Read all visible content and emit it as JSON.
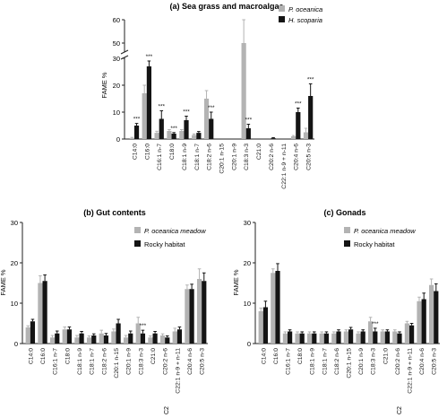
{
  "figure": {
    "colors": {
      "light": "#b3b3b3",
      "dark": "#141414",
      "axis": "#222222"
    },
    "panels": [
      {
        "id": "a",
        "title": "(a) Sea grass and macroalgae",
        "ylabel": "FAME %",
        "legend": [
          "P. oceanica",
          "H. scoparia"
        ],
        "axis_break": true,
        "yticks_lower": [
          0,
          10,
          20,
          30
        ],
        "yticks_upper": [
          50,
          60
        ]
      },
      {
        "id": "b",
        "title": "(b) Gut contents",
        "ylabel": "FAME %",
        "legend": [
          "P. oceanica meadow",
          "Rocky habitat"
        ],
        "yticks": [
          0,
          10,
          20,
          30
        ],
        "extra_label": "C2"
      },
      {
        "id": "c",
        "title": "(c) Gonads",
        "ylabel": "FAME %",
        "legend": [
          "P. oceanica meadow",
          "Rocky habitat"
        ],
        "yticks": [
          0,
          10,
          20,
          30
        ],
        "extra_label": "C2"
      }
    ]
  },
  "chart_data": [
    {
      "type": "bar",
      "title": "(a) Sea grass and macroalgae",
      "ylabel": "FAME %",
      "ylim": [
        0,
        60
      ],
      "axis_break": [
        30,
        45
      ],
      "categories": [
        "C14:0",
        "C16:0",
        "C16:1 n-7",
        "C18:0",
        "C18:1 n-9",
        "C18:1 n-7",
        "C18:2 n-6",
        "C20:1 n-15",
        "C20:1 n-9",
        "C18:3 n-3",
        "C21:0",
        "C20:2 n-6",
        "C22:1 n-9 + n-11",
        "C20:4 n-6",
        "C20:5 n-3"
      ],
      "series": [
        {
          "name": "P. oceanica",
          "values": [
            0.3,
            17,
            2.3,
            3,
            3,
            1.5,
            15,
            0,
            0,
            50,
            0,
            0,
            0,
            1,
            2.5
          ],
          "errors": [
            0.3,
            3,
            0.6,
            0.5,
            0.5,
            0.4,
            3,
            0,
            0,
            10,
            0,
            0,
            0,
            0.3,
            1.5
          ]
        },
        {
          "name": "H. scoparia",
          "values": [
            5,
            27,
            7.5,
            2,
            7,
            2.3,
            7.5,
            0,
            0,
            4,
            0,
            0.3,
            0,
            10,
            16
          ],
          "errors": [
            0.8,
            2,
            3,
            0.4,
            1.5,
            0.5,
            2.5,
            0,
            0,
            1.5,
            0,
            0.2,
            0,
            1.5,
            4.5
          ]
        }
      ],
      "annotations": [
        "***",
        "***",
        "***",
        "***",
        "***",
        "***",
        "***",
        "***",
        "***"
      ]
    },
    {
      "type": "bar",
      "title": "(b) Gut contents",
      "ylabel": "FAME %",
      "ylim": [
        0,
        30
      ],
      "categories": [
        "C14:0",
        "C16:0",
        "C16:1 n-7",
        "C18:0",
        "C18:1 n-9",
        "C18:1 n-7",
        "C18:2 n-6",
        "C20:1 n-15",
        "C20:1 n-9",
        "C18:3 n-3",
        "C21:0",
        "C20:2 n-6",
        "C22:1 n-9 + n-11",
        "C20:4 n-6",
        "C20:5 n-3"
      ],
      "series": [
        {
          "name": "P. oceanica meadow",
          "values": [
            4,
            15,
            1.5,
            3.5,
            1.5,
            1.5,
            2.5,
            3,
            1.5,
            5,
            1.5,
            2,
            3,
            13.5,
            16
          ],
          "errors": [
            0.4,
            1.8,
            0.5,
            0.6,
            0.5,
            0.4,
            0.8,
            0.6,
            0.5,
            1.5,
            0.4,
            0.4,
            0.8,
            1,
            2.5
          ]
        },
        {
          "name": "Rocky habitat",
          "values": [
            5.5,
            15.5,
            2.5,
            3.5,
            2.5,
            2,
            2,
            5,
            2.5,
            2.5,
            2.5,
            1.5,
            3.5,
            13.5,
            15.5
          ],
          "errors": [
            0.5,
            1.5,
            0.6,
            0.6,
            0.5,
            0.4,
            0.5,
            1,
            0.6,
            0.8,
            0.5,
            0.4,
            0.6,
            1.2,
            2
          ]
        }
      ],
      "annotations": [
        "***"
      ]
    },
    {
      "type": "bar",
      "title": "(c) Gonads",
      "ylabel": "FAME %",
      "ylim": [
        0,
        30
      ],
      "categories": [
        "C14:0",
        "C16:0",
        "C16:1 n-7",
        "C18:0",
        "C18:1 n-9",
        "C18:1 n-7",
        "C18:2 n-6",
        "C20:1 n-15",
        "C20:1 n-9",
        "C18:3 n-3",
        "C21:0",
        "C20:2 n-6",
        "C22:1 n-9 + n-11",
        "C20:4 n-6",
        "C20:5 n-3"
      ],
      "series": [
        {
          "name": "P. oceanica meadow",
          "values": [
            8,
            17.5,
            2.5,
            2.5,
            2.5,
            2.5,
            2.5,
            3,
            2.5,
            5.5,
            3,
            3,
            5,
            10.5,
            14.5
          ],
          "errors": [
            0.8,
            1,
            0.4,
            0.4,
            0.4,
            0.4,
            0.4,
            0.4,
            0.4,
            1,
            0.4,
            0.4,
            0.5,
            1,
            1.5
          ]
        },
        {
          "name": "Rocky habitat",
          "values": [
            9,
            18,
            3,
            2.5,
            2.5,
            2.5,
            3,
            3.5,
            3,
            3,
            3,
            2.5,
            4.5,
            11,
            13
          ],
          "errors": [
            1.5,
            1.8,
            0.4,
            0.4,
            0.4,
            0.4,
            0.4,
            0.5,
            0.4,
            0.8,
            0.4,
            0.4,
            0.5,
            1.5,
            1.8
          ]
        }
      ],
      "annotations": [
        "***"
      ]
    }
  ]
}
